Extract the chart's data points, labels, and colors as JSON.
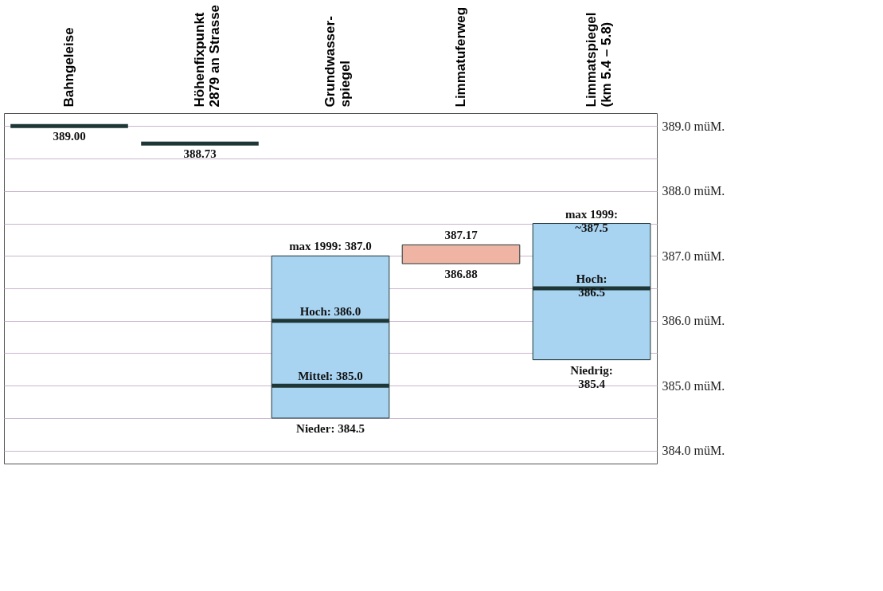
{
  "chart_data": {
    "type": "bar",
    "categories": [
      "Bahngeleise",
      "Höhenfixpunkt\n2879 an Strasse",
      "Grundwasser-\nspiegel",
      "Limmatuferweg",
      "Limmatspiegel\n(km 5.4 – 5.8)"
    ],
    "series": [
      {
        "type": "bar",
        "values": [
          null,
          null,
          2.5,
          0.29,
          2.1
        ],
        "base": [
          null,
          null,
          384.5,
          386.88,
          385.4
        ],
        "colors": [
          null,
          null,
          "#a8d4f2",
          "#f0b4a4",
          "#a8d4f2"
        ]
      },
      {
        "type": "bar",
        "color": "#1e3636",
        "values": [
          0,
          0,
          0,
          null,
          0
        ],
        "base": [
          389.0,
          388.73,
          386.0,
          null,
          386.5
        ]
      },
      {
        "type": "bar",
        "color": "#1e3636",
        "values": [
          null,
          null,
          0,
          null,
          null
        ],
        "base": [
          null,
          null,
          385.0,
          null,
          null
        ]
      }
    ],
    "ylim": [
      383.8,
      389.2
    ],
    "yticks": [
      {
        "value": 384.0,
        "label": "384.0 müM."
      },
      {
        "value": 384.5,
        "label": null
      },
      {
        "value": 385.0,
        "label": "385.0 müM."
      },
      {
        "value": 385.5,
        "label": null
      },
      {
        "value": 386.0,
        "label": "386.0 müM."
      },
      {
        "value": 386.5,
        "label": null
      },
      {
        "value": 387.0,
        "label": "387.0 müM."
      },
      {
        "value": 387.5,
        "label": null
      },
      {
        "value": 388.0,
        "label": "388.0 müM."
      },
      {
        "value": 388.5,
        "label": null
      },
      {
        "value": 389.0,
        "label": "389.0 müM."
      }
    ],
    "grid": "y",
    "annotations": [
      {
        "text": "389.00",
        "x": "Bahngeleise",
        "y": 389.0
      },
      {
        "text": "388.73",
        "x": "Höhenfixpunkt\n2879 an Strasse",
        "y": 388.73
      },
      {
        "text": "max 1999: 387.0",
        "x": "Grundwasser-\nspiegel",
        "y": 387.0
      },
      {
        "text": "Hoch: 386.0",
        "x": "Grundwasser-\nspiegel",
        "y": 386.0
      },
      {
        "text": "Mittel: 385.0",
        "x": "Grundwasser-\nspiegel",
        "y": 385.0
      },
      {
        "text": "Nieder: 384.5",
        "x": "Grundwasser-\nspiegel",
        "y": 384.5
      },
      {
        "text": "387.17",
        "x": "Limmatuferweg",
        "y": 387.17
      },
      {
        "text": "386.88",
        "x": "Limmatuferweg",
        "y": 386.88
      },
      {
        "text": "max 1999:\n~387.5",
        "x": "Limmatspiegel\n(km 5.4 – 5.8)",
        "y": 387.5
      },
      {
        "text": "Hoch:\n386.5",
        "x": "Limmatspiegel\n(km 5.4 – 5.8)",
        "y": 386.5
      },
      {
        "text": "Niedrig:\n385.4",
        "x": "Limmatspiegel\n(km 5.4 – 5.8)",
        "y": 385.4
      }
    ]
  }
}
